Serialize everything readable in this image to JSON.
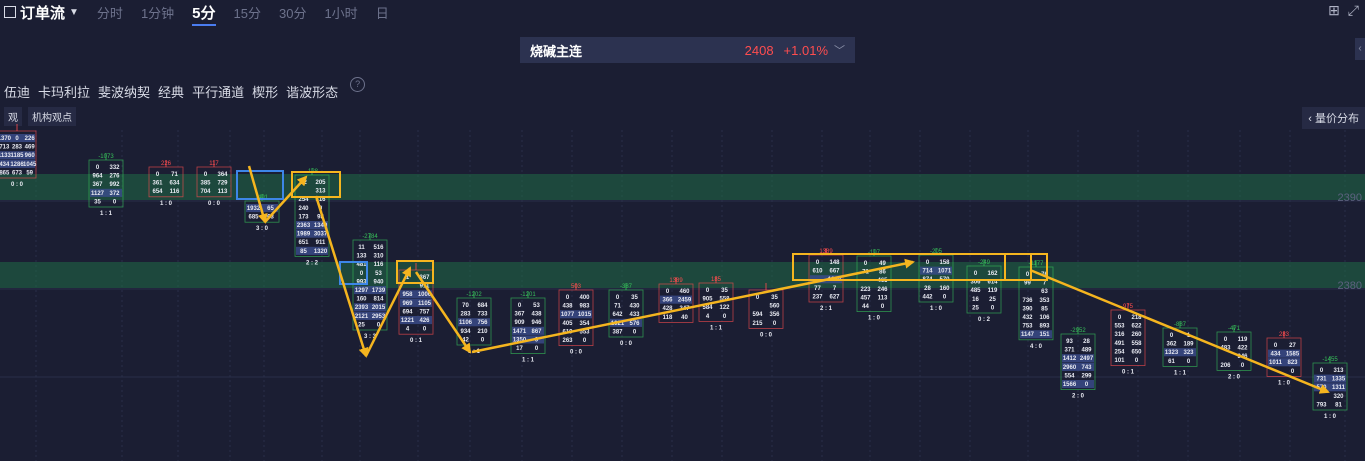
{
  "header": {
    "title": "订单流",
    "timeframes": [
      "分时",
      "1分钟",
      "5分",
      "15分",
      "30分",
      "1小时",
      "日"
    ],
    "active_timeframe": "5分"
  },
  "contract": {
    "name": "烧碱主连",
    "price": "2408",
    "change": "+1.01%"
  },
  "toolbar": {
    "tools": [
      "伍迪",
      "卡玛利拉",
      "斐波纳契",
      "经典",
      "平行通道",
      "楔形",
      "谐波形态"
    ]
  },
  "views": {
    "icon_label": "观",
    "label": "机构观点"
  },
  "side_panel": {
    "label": "量价分布"
  },
  "colors": {
    "bg": "#1b1e33",
    "zone": "#1f6b45",
    "arrow": "#f5b51f",
    "up": "#37c25a",
    "down": "#ff4d4f",
    "blue": "#3d86e8"
  },
  "chart_data": {
    "type": "footprint",
    "price_axis_labels": [
      "2390",
      "2380"
    ],
    "zones": [
      {
        "from": 2388,
        "to": 2391
      },
      {
        "from": 2378,
        "to": 2381
      }
    ],
    "candles": [
      {
        "x": "bar1",
        "delta": "",
        "rows": [
          [
            "1370",
            "0",
            "226"
          ],
          [
            "713",
            "283",
            "469"
          ],
          [
            "1133",
            "1185",
            "960"
          ],
          [
            "434",
            "1286",
            "1045"
          ],
          [
            "865",
            "673",
            "59"
          ]
        ],
        "footer": "0 : 0"
      },
      {
        "x": "bar2",
        "delta": "-1073",
        "rows": [
          [
            "0",
            "332"
          ],
          [
            "964",
            "276"
          ],
          [
            "367",
            "992"
          ],
          [
            "1127",
            "372"
          ],
          [
            "35",
            "0"
          ]
        ],
        "footer": "1 : 1"
      },
      {
        "x": "bar3",
        "delta": "226",
        "rows": [
          [
            "0",
            "71"
          ],
          [
            "361",
            "634"
          ],
          [
            "654",
            "116"
          ]
        ],
        "footer": "1 : 0"
      },
      {
        "x": "bar4",
        "delta": "117",
        "rows": [
          [
            "0",
            "364"
          ],
          [
            "385",
            "729"
          ],
          [
            "704",
            "113"
          ]
        ],
        "footer": "0 : 0"
      },
      {
        "x": "bar5",
        "delta": "-491",
        "rows": [
          [
            "1932",
            "65"
          ],
          [
            "685",
            "63"
          ]
        ],
        "footer": "3 : 0"
      },
      {
        "x": "bar6",
        "delta": "-128",
        "rows": [
          [
            "12",
            "205"
          ],
          [
            "",
            "313"
          ],
          [
            "254",
            "316"
          ],
          [
            "240",
            "0"
          ],
          [
            "173",
            "98"
          ],
          [
            "2363",
            "1340"
          ],
          [
            "1989",
            "3037"
          ],
          [
            "651",
            "911"
          ],
          [
            "85",
            "1320"
          ]
        ],
        "footer": "2 : 2"
      },
      {
        "x": "bar7",
        "delta": "-2784",
        "rows": [
          [
            "11",
            "516"
          ],
          [
            "133",
            "310"
          ],
          [
            "481",
            "116"
          ],
          [
            "0",
            "53"
          ],
          [
            "993",
            "940"
          ],
          [
            "1297",
            "1739"
          ],
          [
            "160",
            "814"
          ],
          [
            "2393",
            "2015"
          ],
          [
            "2121",
            "2953"
          ],
          [
            "25",
            "0"
          ]
        ],
        "footer": "3 : 3"
      },
      {
        "x": "bar8",
        "delta": "",
        "rows": [
          [
            "1",
            "367"
          ],
          [
            "",
            "911"
          ],
          [
            "958",
            "1000"
          ],
          [
            "969",
            "1105"
          ],
          [
            "694",
            "757"
          ],
          [
            "1221",
            "426"
          ],
          [
            "4",
            "0"
          ]
        ],
        "footer": "0 : 1"
      },
      {
        "x": "bar9",
        "delta": "-1202",
        "rows": [
          [
            "70",
            "684"
          ],
          [
            "283",
            "733"
          ],
          [
            "1106",
            "756"
          ],
          [
            "934",
            "210"
          ],
          [
            "42",
            "0"
          ]
        ],
        "footer": "1 : 1"
      },
      {
        "x": "bar10",
        "delta": "-1201",
        "rows": [
          [
            "0",
            "53"
          ],
          [
            "367",
            "438"
          ],
          [
            "909",
            "946"
          ],
          [
            "1471",
            "867"
          ],
          [
            "1350",
            "0"
          ],
          [
            "17",
            "0"
          ]
        ],
        "footer": "1 : 1"
      },
      {
        "x": "bar11",
        "delta": "503",
        "rows": [
          [
            "0",
            "400"
          ],
          [
            "438",
            "983"
          ],
          [
            "1077",
            "1015"
          ],
          [
            "405",
            "354"
          ],
          [
            "619",
            "553"
          ],
          [
            "263",
            "0"
          ]
        ],
        "footer": "0 : 0"
      },
      {
        "x": "bar12",
        "delta": "-387",
        "rows": [
          [
            "0",
            "35"
          ],
          [
            "71",
            "430"
          ],
          [
            "642",
            "433"
          ],
          [
            "1021",
            "576"
          ],
          [
            "387",
            "0"
          ]
        ],
        "footer": "0 : 0"
      },
      {
        "x": "bar13",
        "delta": "1389",
        "rows": [
          [
            "0",
            "460"
          ],
          [
            "366",
            "2459"
          ],
          [
            "428",
            "347"
          ],
          [
            "118",
            "40"
          ]
        ],
        "footer": ""
      },
      {
        "x": "bar14",
        "delta": "185",
        "rows": [
          [
            "0",
            "35"
          ],
          [
            "905",
            "558"
          ],
          [
            "584",
            "122"
          ],
          [
            "4",
            "0"
          ]
        ],
        "footer": "1 : 1"
      },
      {
        "x": "bar15",
        "delta": "",
        "rows": [
          [
            "0",
            "35"
          ],
          [
            "",
            "560"
          ],
          [
            "594",
            "356"
          ],
          [
            "215",
            "0"
          ]
        ],
        "footer": "0 : 0"
      },
      {
        "x": "bar16",
        "delta": "1389",
        "rows": [
          [
            "0",
            "148"
          ],
          [
            "610",
            "667"
          ],
          [
            "",
            "1064"
          ],
          [
            "77",
            "7"
          ],
          [
            "237",
            "627"
          ]
        ],
        "footer": "2 : 1"
      },
      {
        "x": "bar17",
        "delta": "-197",
        "rows": [
          [
            "0",
            "49"
          ],
          [
            "71",
            "86"
          ],
          [
            "",
            "465"
          ],
          [
            "223",
            "246"
          ],
          [
            "457",
            "113"
          ],
          [
            "44",
            "0"
          ]
        ],
        "footer": "1 : 0"
      },
      {
        "x": "bar18",
        "delta": "-205",
        "rows": [
          [
            "0",
            "158"
          ],
          [
            "714",
            "1071"
          ],
          [
            "874",
            "570"
          ],
          [
            "28",
            "160"
          ],
          [
            "442",
            "0"
          ]
        ],
        "footer": "1 : 0"
      },
      {
        "x": "bar19",
        "delta": "-249",
        "rows": [
          [
            "0",
            "162"
          ],
          [
            "306",
            "614"
          ],
          [
            "485",
            "119"
          ],
          [
            "16",
            "25"
          ],
          [
            "25",
            "0"
          ]
        ],
        "footer": "0 : 2"
      },
      {
        "x": "bar20",
        "delta": "-1177",
        "rows": [
          [
            "0",
            "76"
          ],
          [
            "99",
            "7"
          ],
          [
            "",
            "63"
          ],
          [
            "736",
            "353"
          ],
          [
            "390",
            "85"
          ],
          [
            "432",
            "106"
          ],
          [
            "753",
            "893"
          ],
          [
            "1147",
            "151"
          ]
        ],
        "footer": "4 : 0"
      },
      {
        "x": "bar21",
        "delta": "-2952",
        "rows": [
          [
            "93",
            "28"
          ],
          [
            "371",
            "489"
          ],
          [
            "1412",
            "2497"
          ],
          [
            "2960",
            "743"
          ],
          [
            "554",
            "299"
          ],
          [
            "1566",
            "0"
          ]
        ],
        "footer": "2 : 0"
      },
      {
        "x": "bar22",
        "delta": "975",
        "rows": [
          [
            "0",
            "218"
          ],
          [
            "553",
            "622"
          ],
          [
            "316",
            "260"
          ],
          [
            "491",
            "558"
          ],
          [
            "254",
            "650"
          ],
          [
            "101",
            "0"
          ]
        ],
        "footer": "0 : 1"
      },
      {
        "x": "bar23",
        "delta": "-887",
        "rows": [
          [
            "0",
            "1"
          ],
          [
            "362",
            "189"
          ],
          [
            "1323",
            "323"
          ],
          [
            "61",
            "0"
          ]
        ],
        "footer": "1 : 1"
      },
      {
        "x": "bar24",
        "delta": "-471",
        "rows": [
          [
            "0",
            "119"
          ],
          [
            "483",
            "422"
          ],
          [
            "",
            "346"
          ],
          [
            "206",
            "0"
          ]
        ],
        "footer": "2 : 0"
      },
      {
        "x": "bar25",
        "delta": "283",
        "rows": [
          [
            "0",
            "27"
          ],
          [
            "434",
            "1585"
          ],
          [
            "1011",
            "823"
          ],
          [
            "",
            "0"
          ]
        ],
        "footer": "1 : 0"
      },
      {
        "x": "bar26",
        "delta": "-1455",
        "rows": [
          [
            "0",
            "313"
          ],
          [
            "731",
            "1335"
          ],
          [
            "570",
            "1311"
          ],
          [
            "",
            "320"
          ],
          [
            "793",
            "81"
          ]
        ],
        "footer": "1 : 0"
      }
    ]
  }
}
